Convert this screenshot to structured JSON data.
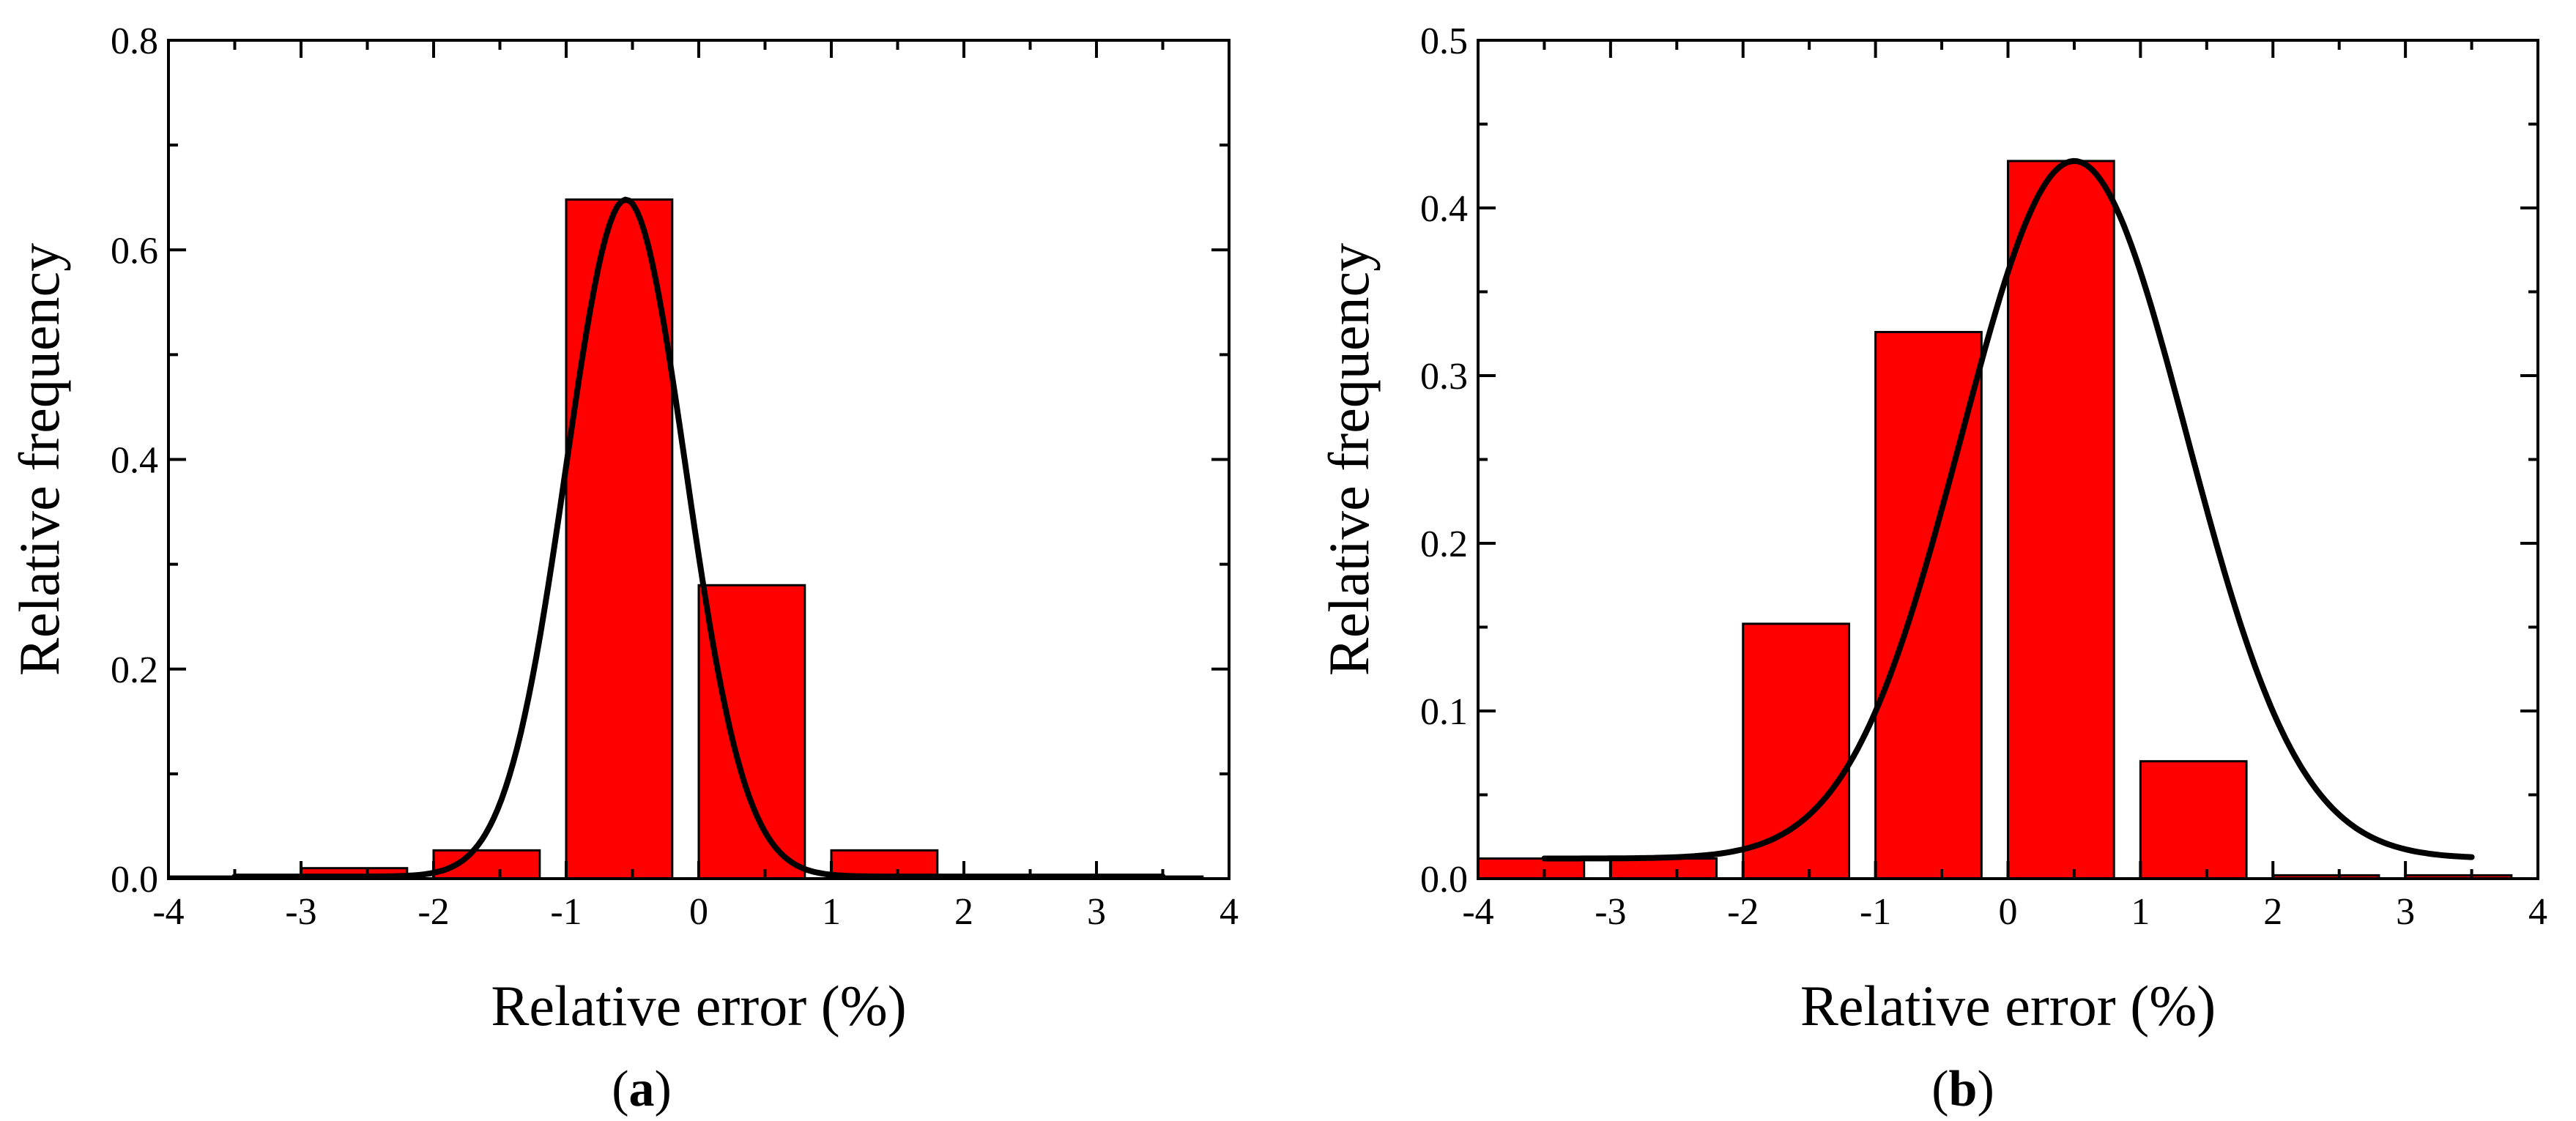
{
  "figure": {
    "panels": [
      {
        "caption_open": "(",
        "caption_letter": "a",
        "caption_close": ")"
      },
      {
        "caption_open": "(",
        "caption_letter": "b",
        "caption_close": ")"
      }
    ]
  },
  "chart_data": [
    {
      "type": "bar",
      "xlabel": "Relative error (%)",
      "ylabel": "Relative frequency",
      "xlim": [
        -4,
        4
      ],
      "ylim": [
        0,
        0.8
      ],
      "x_major_ticks": [
        -4,
        -3,
        -2,
        -1,
        0,
        1,
        2,
        3,
        4
      ],
      "x_tick_labels": [
        "-4",
        "-3",
        "-2",
        "-1",
        "0",
        "1",
        "2",
        "3",
        "4"
      ],
      "y_major_ticks": [
        0,
        0.2,
        0.4,
        0.6,
        0.8
      ],
      "y_tick_labels": [
        "0.0",
        "0.2",
        "0.4",
        "0.6",
        "0.8"
      ],
      "bar_color": "#ff0000",
      "bars": [
        {
          "x0": -4.0,
          "x1": -3.2,
          "value": 0.002
        },
        {
          "x0": -3.0,
          "x1": -2.2,
          "value": 0.01
        },
        {
          "x0": -2.0,
          "x1": -1.2,
          "value": 0.027
        },
        {
          "x0": -1.0,
          "x1": -0.2,
          "value": 0.648
        },
        {
          "x0": 0.0,
          "x1": 0.8,
          "value": 0.28
        },
        {
          "x0": 1.0,
          "x1": 1.8,
          "value": 0.027
        },
        {
          "x0": 2.0,
          "x1": 2.8,
          "value": 0.001
        },
        {
          "x0": 3.0,
          "x1": 3.8,
          "value": 0.002
        }
      ],
      "fit_curve": {
        "type": "gaussian",
        "color": "#000000",
        "peak": 0.648,
        "mean": -0.55,
        "sigma": 0.45,
        "offset": 0.002,
        "x_range": [
          -3.5,
          3.5
        ]
      }
    },
    {
      "type": "bar",
      "xlabel": "Relative error (%)",
      "ylabel": "Relative frequency",
      "xlim": [
        -4,
        4
      ],
      "ylim": [
        0,
        0.5
      ],
      "x_major_ticks": [
        -4,
        -3,
        -2,
        -1,
        0,
        1,
        2,
        3,
        4
      ],
      "x_tick_labels": [
        "-4",
        "-3",
        "-2",
        "-1",
        "0",
        "1",
        "2",
        "3",
        "4"
      ],
      "y_major_ticks": [
        0,
        0.1,
        0.2,
        0.3,
        0.4,
        0.5
      ],
      "y_tick_labels": [
        "0.0",
        "0.1",
        "0.2",
        "0.3",
        "0.4",
        "0.5"
      ],
      "bar_color": "#ff0000",
      "bars": [
        {
          "x0": -4.0,
          "x1": -3.2,
          "value": 0.012
        },
        {
          "x0": -3.0,
          "x1": -2.2,
          "value": 0.012
        },
        {
          "x0": -2.0,
          "x1": -1.2,
          "value": 0.152
        },
        {
          "x0": -1.0,
          "x1": -0.2,
          "value": 0.326
        },
        {
          "x0": 0.0,
          "x1": 0.8,
          "value": 0.428
        },
        {
          "x0": 1.0,
          "x1": 1.8,
          "value": 0.07
        },
        {
          "x0": 2.0,
          "x1": 2.8,
          "value": 0.002
        },
        {
          "x0": 3.0,
          "x1": 3.8,
          "value": 0.002
        }
      ],
      "fit_curve": {
        "type": "gaussian",
        "color": "#000000",
        "peak": 0.428,
        "mean": 0.5,
        "sigma": 0.85,
        "offset": 0.012,
        "x_range": [
          -3.5,
          3.5
        ]
      }
    }
  ]
}
